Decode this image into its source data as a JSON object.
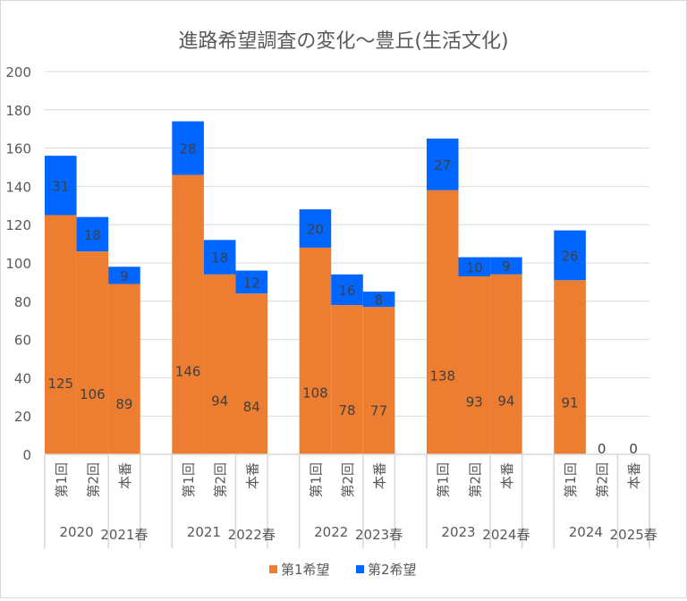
{
  "chart_data": {
    "type": "bar",
    "stacked": true,
    "title": "進路希望調査の変化～豊丘(生活文化)",
    "ylim": [
      0,
      200
    ],
    "yticks": [
      0,
      20,
      40,
      60,
      80,
      100,
      120,
      140,
      160,
      180,
      200
    ],
    "grid": true,
    "legend_position": "bottom",
    "groups": [
      {
        "labels": [
          "2020",
          "2021春"
        ],
        "categories": [
          "第1回",
          "第2回",
          "本番"
        ]
      },
      {
        "labels": [
          "2021",
          "2022春"
        ],
        "categories": [
          "第1回",
          "第2回",
          "本番"
        ]
      },
      {
        "labels": [
          "2022",
          "2023春"
        ],
        "categories": [
          "第1回",
          "第2回",
          "本番"
        ]
      },
      {
        "labels": [
          "2023",
          "2024春"
        ],
        "categories": [
          "第1回",
          "第2回",
          "本番"
        ]
      },
      {
        "labels": [
          "2024",
          "2025春"
        ],
        "categories": [
          "第1回",
          "第2回",
          "本番"
        ]
      }
    ],
    "series": [
      {
        "name": "第1希望",
        "color": "#ED7D31",
        "values": [
          [
            125,
            106,
            89
          ],
          [
            146,
            94,
            84
          ],
          [
            108,
            78,
            77
          ],
          [
            138,
            93,
            94
          ],
          [
            91,
            0,
            0
          ]
        ]
      },
      {
        "name": "第2希望",
        "color": "#0066FF",
        "values": [
          [
            31,
            18,
            9
          ],
          [
            28,
            18,
            12
          ],
          [
            20,
            16,
            8
          ],
          [
            27,
            10,
            9
          ],
          [
            26,
            0,
            0
          ]
        ]
      }
    ],
    "show_labels": [
      [
        [
          true,
          true,
          true
        ],
        [
          true,
          true,
          true
        ],
        [
          true,
          true,
          true
        ],
        [
          true,
          true,
          true
        ],
        [
          true,
          false,
          false
        ]
      ],
      [
        [
          true,
          true,
          true
        ],
        [
          true,
          true,
          true
        ],
        [
          true,
          true,
          true
        ],
        [
          true,
          true,
          true
        ],
        [
          true,
          true,
          true
        ]
      ]
    ]
  }
}
